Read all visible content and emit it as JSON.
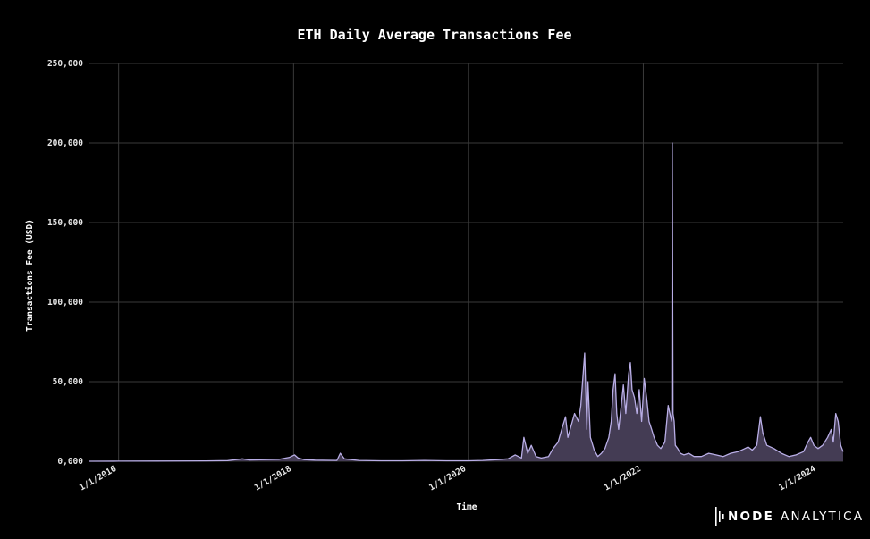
{
  "chart_data": {
    "type": "area",
    "title": "ETH Daily Average Transactions Fee",
    "xlabel": "Time",
    "ylabel": "Transactions Fee (USD)",
    "ylim": [
      0,
      250000
    ],
    "xlim": [
      "2015-09-01",
      "2024-04-15"
    ],
    "y_ticks": [
      0,
      50000,
      100000,
      150000,
      200000,
      250000
    ],
    "y_tick_labels": [
      "0,000",
      "50,000",
      "100,000",
      "150,000",
      "200,000",
      "250,000"
    ],
    "x_ticks": [
      "2016-01-01",
      "2018-01-01",
      "2020-01-01",
      "2022-01-01",
      "2024-01-01"
    ],
    "x_tick_labels": [
      "1/1/2016",
      "1/1/2018",
      "1/1/2020",
      "1/1/2022",
      "1/1/2024"
    ],
    "grid": true,
    "legend": "none",
    "colors": {
      "background": "#000000",
      "fill": "#443c54",
      "line": "#b9aee6",
      "grid": "#3a3a3a"
    },
    "series": [
      {
        "x": [
          "2015-09-01",
          "2016-01-01",
          "2016-06-01",
          "2017-01-01",
          "2017-04-01",
          "2017-06-01",
          "2017-07-01",
          "2017-09-01",
          "2017-11-01",
          "2017-12-15",
          "2018-01-05",
          "2018-01-20",
          "2018-02-15",
          "2018-04-01",
          "2018-07-01",
          "2018-07-15",
          "2018-08-01",
          "2018-10-01",
          "2019-01-01",
          "2019-04-01",
          "2019-07-01",
          "2019-10-01",
          "2020-01-01",
          "2020-03-01",
          "2020-05-01",
          "2020-06-15",
          "2020-07-15",
          "2020-08-10",
          "2020-08-20",
          "2020-09-05",
          "2020-09-20",
          "2020-10-10",
          "2020-11-01",
          "2020-12-01",
          "2020-12-20",
          "2021-01-10",
          "2021-01-25",
          "2021-02-10",
          "2021-02-20",
          "2021-03-05",
          "2021-03-20",
          "2021-04-05",
          "2021-04-15",
          "2021-05-01",
          "2021-05-10",
          "2021-05-15",
          "2021-05-25",
          "2021-06-10",
          "2021-06-25",
          "2021-07-10",
          "2021-07-25",
          "2021-08-10",
          "2021-08-20",
          "2021-08-28",
          "2021-09-05",
          "2021-09-12",
          "2021-09-20",
          "2021-10-01",
          "2021-10-10",
          "2021-10-20",
          "2021-11-01",
          "2021-11-08",
          "2021-11-15",
          "2021-11-25",
          "2021-12-05",
          "2021-12-15",
          "2021-12-25",
          "2022-01-05",
          "2022-01-15",
          "2022-01-25",
          "2022-02-05",
          "2022-02-15",
          "2022-03-01",
          "2022-03-15",
          "2022-04-01",
          "2022-04-15",
          "2022-04-25",
          "2022-04-30",
          "2022-05-02",
          "2022-05-05",
          "2022-05-10",
          "2022-05-15",
          "2022-05-25",
          "2022-06-05",
          "2022-06-20",
          "2022-07-10",
          "2022-08-01",
          "2022-09-01",
          "2022-10-01",
          "2022-11-01",
          "2022-12-01",
          "2023-01-01",
          "2023-02-01",
          "2023-03-01",
          "2023-03-15",
          "2023-04-01",
          "2023-04-20",
          "2023-05-05",
          "2023-05-15",
          "2023-06-01",
          "2023-07-01",
          "2023-08-01",
          "2023-09-01",
          "2023-10-01",
          "2023-11-01",
          "2023-11-20",
          "2023-12-01",
          "2023-12-15",
          "2024-01-01",
          "2024-01-20",
          "2024-02-10",
          "2024-02-25",
          "2024-03-05",
          "2024-03-15",
          "2024-03-25",
          "2024-04-05",
          "2024-04-15"
        ],
        "y": [
          0,
          50,
          100,
          200,
          400,
          1500,
          800,
          1000,
          1200,
          2500,
          4000,
          2000,
          1000,
          700,
          500,
          5000,
          1500,
          500,
          300,
          300,
          500,
          300,
          300,
          500,
          1000,
          1500,
          4000,
          2000,
          15000,
          5000,
          10000,
          3000,
          2000,
          3000,
          8000,
          12000,
          20000,
          28000,
          15000,
          22000,
          30000,
          25000,
          35000,
          68000,
          20000,
          50000,
          15000,
          7000,
          3000,
          5000,
          8000,
          15000,
          25000,
          45000,
          55000,
          30000,
          20000,
          35000,
          48000,
          30000,
          55000,
          62000,
          45000,
          40000,
          30000,
          45000,
          25000,
          52000,
          40000,
          25000,
          20000,
          15000,
          10000,
          8000,
          12000,
          35000,
          28000,
          25000,
          200000,
          30000,
          25000,
          10000,
          8000,
          5000,
          4000,
          5000,
          3000,
          3000,
          5000,
          4000,
          3000,
          5000,
          6000,
          8000,
          9000,
          7000,
          10000,
          28000,
          18000,
          10000,
          8000,
          5000,
          3000,
          4000,
          6000,
          12000,
          15000,
          10000,
          8000,
          10000,
          15000,
          20000,
          12000,
          30000,
          25000,
          10000,
          6000
        ]
      }
    ]
  },
  "brand": {
    "logo_text_bold": "NODE",
    "logo_text_light": "ANALYTICA"
  }
}
